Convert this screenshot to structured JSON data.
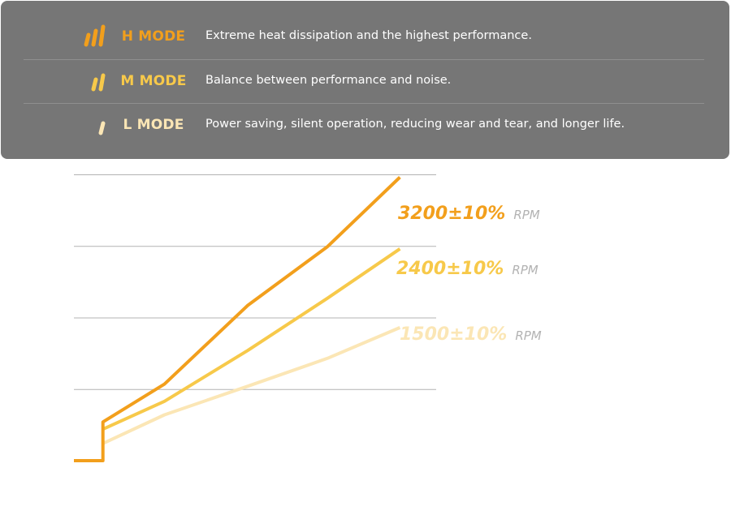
{
  "modes": [
    {
      "name": "H MODE",
      "description": "Extreme heat dissipation and the highest performance.",
      "color": "#f29f1c",
      "icon": "triple-bar-icon",
      "bars": 3
    },
    {
      "name": "M MODE",
      "description": "Balance between performance and noise.",
      "color": "#f7c94a",
      "icon": "double-bar-icon",
      "bars": 2
    },
    {
      "name": "L MODE",
      "description": "Power saving, silent operation, reducing wear and tear, and longer life.",
      "color": "#fbe6b5",
      "icon": "single-bar-icon",
      "bars": 1
    }
  ],
  "chart_data": {
    "type": "line",
    "xlim": [
      0,
      100
    ],
    "ylim": [
      0,
      4000
    ],
    "grid": true,
    "gridlines": [
      1000,
      2000,
      3000,
      4000
    ],
    "series": [
      {
        "value_label": "3200±10%",
        "unit": "RPM",
        "color": "#f29f1c",
        "points": [
          [
            0,
            0
          ],
          [
            8,
            0
          ],
          [
            8,
            540
          ],
          [
            25,
            1070
          ],
          [
            48,
            2170
          ],
          [
            70,
            2990
          ],
          [
            90,
            3960
          ]
        ]
      },
      {
        "value_label": "2400±10%",
        "unit": "RPM",
        "color": "#f7c94a",
        "points": [
          [
            8,
            440
          ],
          [
            25,
            830
          ],
          [
            48,
            1540
          ],
          [
            70,
            2270
          ],
          [
            90,
            2960
          ]
        ]
      },
      {
        "value_label": "1500±10%",
        "unit": "RPM",
        "color": "#fbe6b5",
        "points": [
          [
            8,
            240
          ],
          [
            25,
            640
          ],
          [
            48,
            1040
          ],
          [
            70,
            1430
          ],
          [
            90,
            1860
          ]
        ]
      }
    ]
  }
}
